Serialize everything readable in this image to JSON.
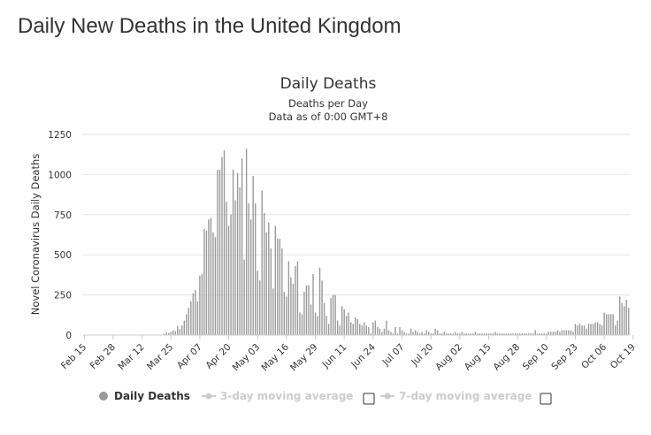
{
  "page": {
    "title": "Daily New Deaths in the United Kingdom"
  },
  "legend": {
    "items": [
      {
        "label": "Daily Deaths",
        "active": true
      },
      {
        "label": "3-day moving average",
        "active": false
      },
      {
        "label": "7-day moving average",
        "active": false
      }
    ],
    "colors": {
      "active": "#333333",
      "inactive": "#cccccc",
      "marker_active": "#999999",
      "marker_inactive": "#cccccc"
    }
  },
  "chart_data": {
    "type": "bar",
    "title": "Daily Deaths",
    "subtitle": [
      "Deaths per Day",
      "Data as of 0:00 GMT+8"
    ],
    "ylabel": "Novel Coronavirus Daily Deaths",
    "xlabel": "",
    "ylim": [
      0,
      1250
    ],
    "yticks": [
      0,
      250,
      500,
      750,
      1000,
      1250
    ],
    "grid": true,
    "legend_position": "bottom-left",
    "bar_color": "#999999",
    "x_tick_labels": [
      "Feb 15",
      "Feb 28",
      "Mar 12",
      "Mar 25",
      "Apr 07",
      "Apr 20",
      "May 03",
      "May 16",
      "May 29",
      "Jun 11",
      "Jun 24",
      "Jul 07",
      "Jul 20",
      "Aug 02",
      "Aug 15",
      "Aug 28",
      "Sep 10",
      "Sep 23",
      "Oct 06",
      "Oct 19"
    ],
    "x_start": "Feb 15",
    "values": [
      0,
      0,
      0,
      0,
      0,
      0,
      0,
      0,
      0,
      0,
      0,
      0,
      0,
      0,
      0,
      0,
      0,
      0,
      0,
      0,
      0,
      0,
      0,
      0,
      0,
      0,
      1,
      0,
      1,
      0,
      1,
      0,
      2,
      2,
      1,
      2,
      8,
      16,
      13,
      20,
      30,
      25,
      56,
      38,
      60,
      90,
      130,
      170,
      210,
      260,
      280,
      210,
      370,
      380,
      660,
      650,
      720,
      730,
      640,
      610,
      1030,
      1030,
      1110,
      1150,
      830,
      680,
      750,
      1030,
      840,
      1010,
      920,
      1100,
      470,
      1160,
      820,
      720,
      990,
      820,
      400,
      340,
      900,
      760,
      640,
      700,
      540,
      290,
      680,
      600,
      600,
      540,
      270,
      240,
      460,
      360,
      320,
      430,
      460,
      140,
      130,
      270,
      310,
      310,
      190,
      380,
      140,
      120,
      420,
      340,
      200,
      120,
      70,
      230,
      250,
      250,
      90,
      60,
      180,
      160,
      120,
      140,
      80,
      70,
      110,
      100,
      70,
      60,
      80,
      60,
      50,
      10,
      80,
      90,
      50,
      40,
      20,
      40,
      90,
      30,
      20,
      10,
      50,
      10,
      50,
      30,
      20,
      10,
      10,
      40,
      20,
      30,
      20,
      10,
      20,
      10,
      30,
      20,
      10,
      10,
      40,
      30,
      10,
      10,
      20,
      10,
      10,
      10,
      10,
      20,
      10,
      10,
      20,
      10,
      10,
      10,
      10,
      10,
      20,
      10,
      10,
      10,
      10,
      10,
      10,
      10,
      10,
      20,
      10,
      10,
      10,
      10,
      10,
      10,
      10,
      10,
      10,
      10,
      10,
      10,
      10,
      10,
      10,
      10,
      10,
      30,
      10,
      10,
      10,
      10,
      10,
      20,
      20,
      20,
      20,
      30,
      20,
      30,
      30,
      30,
      30,
      30,
      20,
      70,
      60,
      70,
      60,
      60,
      40,
      70,
      70,
      70,
      80,
      80,
      70,
      60,
      140,
      130,
      130,
      130,
      130,
      60,
      90,
      240,
      200,
      180,
      220,
      170
    ]
  }
}
